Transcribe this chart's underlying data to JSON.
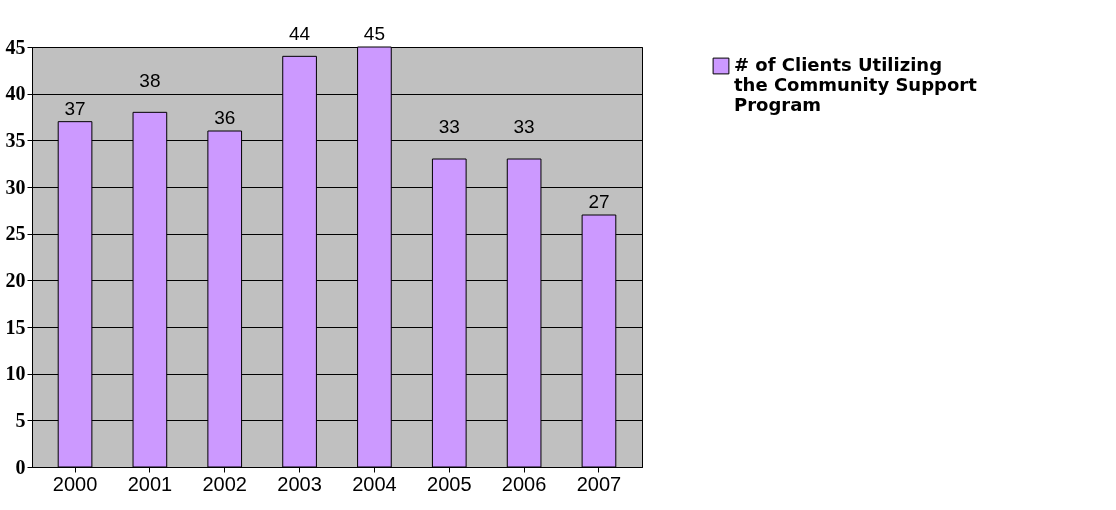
{
  "chart_data": {
    "type": "bar",
    "categories": [
      "2000",
      "2001",
      "2002",
      "2003",
      "2004",
      "2005",
      "2006",
      "2007"
    ],
    "series": [
      {
        "name": "# of Clients Utilizing the Community Support Program",
        "color": "#cc99ff",
        "values": [
          37,
          38,
          36,
          44,
          45,
          33,
          33,
          27
        ]
      }
    ],
    "ylim": [
      0,
      45
    ],
    "yticks": [
      0,
      5,
      10,
      15,
      20,
      25,
      30,
      35,
      40,
      45
    ],
    "grid": "y",
    "legend": "right",
    "data_labels": true
  }
}
